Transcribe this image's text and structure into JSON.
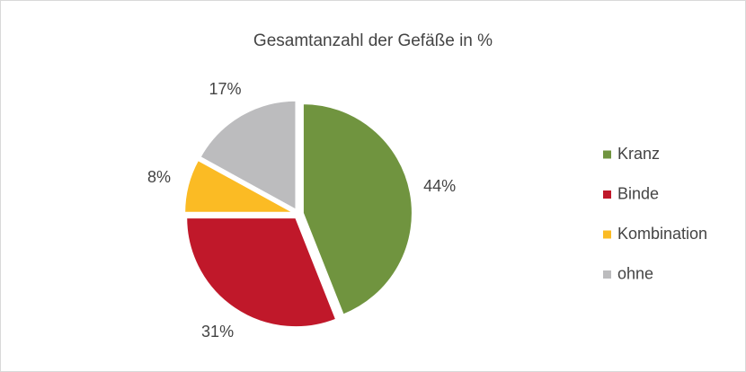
{
  "chart_data": {
    "type": "pie",
    "title": "Gesamtanzahl der Gefäße in %",
    "categories": [
      "Kranz",
      "Binde",
      "Kombination",
      "ohne"
    ],
    "values": [
      44,
      31,
      8,
      17
    ],
    "value_labels": [
      "44%",
      "31%",
      "8%",
      "17%"
    ],
    "colors": [
      "#70943f",
      "#c0182a",
      "#fbbb24",
      "#bcbcbe"
    ],
    "legend": "right"
  }
}
